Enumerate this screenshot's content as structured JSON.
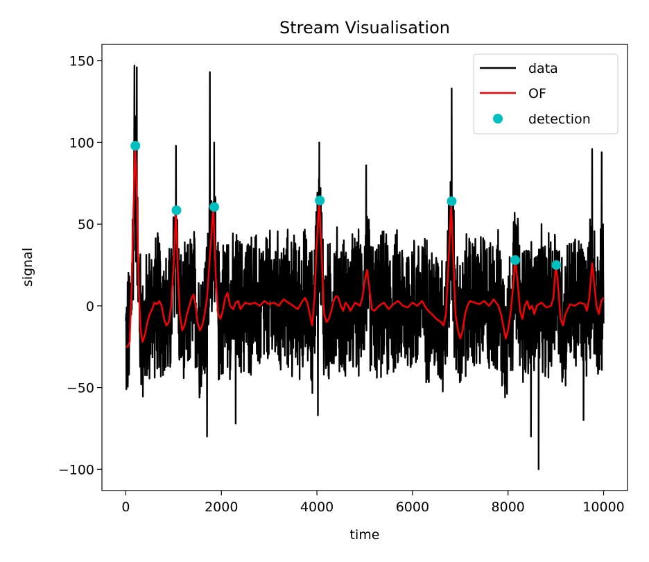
{
  "chart_data": {
    "type": "line",
    "title": "Stream Visualisation",
    "xlabel": "time",
    "ylabel": "signal",
    "xlim": [
      -500,
      10500
    ],
    "ylim": [
      -113,
      160
    ],
    "xticks": [
      0,
      2000,
      4000,
      6000,
      8000,
      10000
    ],
    "xtick_labels": [
      "0",
      "2000",
      "4000",
      "6000",
      "8000",
      "10000"
    ],
    "yticks": [
      -100,
      -50,
      0,
      50,
      100,
      150
    ],
    "ytick_labels": [
      "−100",
      "−50",
      "0",
      "50",
      "100",
      "150"
    ],
    "grid": false,
    "legend_position": "top-right",
    "series": [
      {
        "name": "data",
        "color": "#000000",
        "style": "line",
        "noise_band": {
          "x_range": [
            0,
            10000
          ],
          "typical_low": -50,
          "typical_high": 50
        },
        "peaks": [
          {
            "x": 180,
            "y": 147
          },
          {
            "x": 230,
            "y": 146
          },
          {
            "x": 1050,
            "y": 98
          },
          {
            "x": 1760,
            "y": 143
          },
          {
            "x": 1850,
            "y": 100
          },
          {
            "x": 4050,
            "y": 100
          },
          {
            "x": 5030,
            "y": 86
          },
          {
            "x": 6820,
            "y": 133
          },
          {
            "x": 9760,
            "y": 96
          },
          {
            "x": 9960,
            "y": 94
          }
        ],
        "troughs": [
          {
            "x": 1700,
            "y": -80
          },
          {
            "x": 8480,
            "y": -80
          },
          {
            "x": 8640,
            "y": -100
          },
          {
            "x": 9580,
            "y": -70
          },
          {
            "x": 4020,
            "y": -67
          },
          {
            "x": 2300,
            "y": -72
          }
        ]
      },
      {
        "name": "OF",
        "color": "#ff0000",
        "style": "line",
        "points": [
          [
            0,
            -25
          ],
          [
            40,
            -25
          ],
          [
            80,
            -22
          ],
          [
            120,
            10
          ],
          [
            160,
            60
          ],
          [
            195,
            98
          ],
          [
            230,
            70
          ],
          [
            270,
            10
          ],
          [
            310,
            -15
          ],
          [
            350,
            -22
          ],
          [
            400,
            -18
          ],
          [
            450,
            -10
          ],
          [
            500,
            -5
          ],
          [
            550,
            -2
          ],
          [
            600,
            2
          ],
          [
            650,
            1
          ],
          [
            700,
            3
          ],
          [
            750,
            0
          ],
          [
            800,
            -8
          ],
          [
            850,
            -12
          ],
          [
            900,
            -10
          ],
          [
            950,
            0
          ],
          [
            1000,
            25
          ],
          [
            1050,
            58
          ],
          [
            1090,
            20
          ],
          [
            1130,
            -5
          ],
          [
            1180,
            -15
          ],
          [
            1230,
            -12
          ],
          [
            1280,
            -5
          ],
          [
            1330,
            0
          ],
          [
            1380,
            5
          ],
          [
            1420,
            7
          ],
          [
            1460,
            0
          ],
          [
            1500,
            -10
          ],
          [
            1550,
            -15
          ],
          [
            1600,
            -12
          ],
          [
            1650,
            -5
          ],
          [
            1700,
            5
          ],
          [
            1760,
            30
          ],
          [
            1830,
            61
          ],
          [
            1880,
            20
          ],
          [
            1930,
            -5
          ],
          [
            1980,
            -8
          ],
          [
            2030,
            -3
          ],
          [
            2080,
            5
          ],
          [
            2130,
            8
          ],
          [
            2180,
            0
          ],
          [
            2250,
            -2
          ],
          [
            2300,
            2
          ],
          [
            2350,
            3
          ],
          [
            2400,
            -2
          ],
          [
            2500,
            2
          ],
          [
            2600,
            1
          ],
          [
            2700,
            2
          ],
          [
            2800,
            0
          ],
          [
            2900,
            3
          ],
          [
            3000,
            1
          ],
          [
            3100,
            2
          ],
          [
            3200,
            0
          ],
          [
            3300,
            4
          ],
          [
            3400,
            2
          ],
          [
            3500,
            0
          ],
          [
            3600,
            -2
          ],
          [
            3700,
            3
          ],
          [
            3750,
            5
          ],
          [
            3800,
            2
          ],
          [
            3850,
            -5
          ],
          [
            3900,
            -12
          ],
          [
            3950,
            5
          ],
          [
            4000,
            40
          ],
          [
            4050,
            65
          ],
          [
            4100,
            30
          ],
          [
            4150,
            -5
          ],
          [
            4200,
            -10
          ],
          [
            4250,
            -8
          ],
          [
            4300,
            -3
          ],
          [
            4350,
            3
          ],
          [
            4400,
            6
          ],
          [
            4450,
            5
          ],
          [
            4500,
            0
          ],
          [
            4550,
            -3
          ],
          [
            4600,
            2
          ],
          [
            4650,
            0
          ],
          [
            4700,
            -3
          ],
          [
            4800,
            2
          ],
          [
            4900,
            0
          ],
          [
            4950,
            5
          ],
          [
            5000,
            15
          ],
          [
            5050,
            22
          ],
          [
            5100,
            10
          ],
          [
            5150,
            -2
          ],
          [
            5200,
            -3
          ],
          [
            5300,
            0
          ],
          [
            5400,
            2
          ],
          [
            5500,
            -2
          ],
          [
            5600,
            1
          ],
          [
            5700,
            3
          ],
          [
            5800,
            0
          ],
          [
            5900,
            -1
          ],
          [
            6000,
            2
          ],
          [
            6100,
            0
          ],
          [
            6200,
            3
          ],
          [
            6300,
            -2
          ],
          [
            6400,
            -5
          ],
          [
            6500,
            -8
          ],
          [
            6600,
            -10
          ],
          [
            6650,
            -12
          ],
          [
            6700,
            -5
          ],
          [
            6760,
            30
          ],
          [
            6810,
            62
          ],
          [
            6860,
            25
          ],
          [
            6900,
            -5
          ],
          [
            6950,
            -15
          ],
          [
            7000,
            -20
          ],
          [
            7050,
            -15
          ],
          [
            7100,
            -5
          ],
          [
            7150,
            0
          ],
          [
            7200,
            3
          ],
          [
            7300,
            2
          ],
          [
            7400,
            1
          ],
          [
            7500,
            3
          ],
          [
            7600,
            0
          ],
          [
            7700,
            4
          ],
          [
            7800,
            0
          ],
          [
            7850,
            -5
          ],
          [
            7900,
            -12
          ],
          [
            7950,
            -20
          ],
          [
            8000,
            -15
          ],
          [
            8050,
            -5
          ],
          [
            8100,
            10
          ],
          [
            8150,
            28
          ],
          [
            8200,
            15
          ],
          [
            8250,
            -3
          ],
          [
            8300,
            -8
          ],
          [
            8350,
            0
          ],
          [
            8400,
            3
          ],
          [
            8450,
            -2
          ],
          [
            8500,
            0
          ],
          [
            8550,
            -5
          ],
          [
            8600,
            0
          ],
          [
            8700,
            2
          ],
          [
            8800,
            -1
          ],
          [
            8900,
            0
          ],
          [
            8950,
            5
          ],
          [
            9000,
            25
          ],
          [
            9040,
            15
          ],
          [
            9100,
            -8
          ],
          [
            9150,
            -12
          ],
          [
            9200,
            -5
          ],
          [
            9300,
            1
          ],
          [
            9400,
            0
          ],
          [
            9500,
            2
          ],
          [
            9600,
            1
          ],
          [
            9650,
            -3
          ],
          [
            9700,
            5
          ],
          [
            9760,
            26
          ],
          [
            9800,
            15
          ],
          [
            9850,
            0
          ],
          [
            9900,
            -5
          ],
          [
            9950,
            3
          ],
          [
            10000,
            5
          ]
        ]
      },
      {
        "name": "detection",
        "color": "#00bfbf",
        "style": "markers",
        "points": [
          [
            200,
            98
          ],
          [
            1060,
            58.5
          ],
          [
            1850,
            60.5
          ],
          [
            4060,
            64.5
          ],
          [
            6820,
            64
          ],
          [
            8150,
            28
          ],
          [
            9010,
            25
          ]
        ]
      }
    ]
  }
}
